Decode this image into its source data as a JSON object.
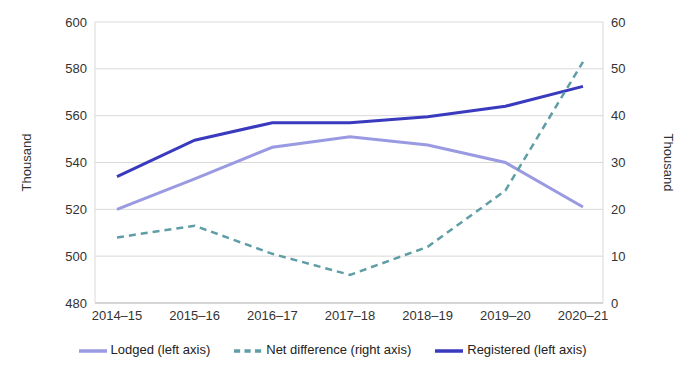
{
  "chart_data": {
    "type": "line",
    "categories": [
      "2014–15",
      "2015–16",
      "2016–17",
      "2017–18",
      "2018–19",
      "2019–20",
      "2020–21"
    ],
    "series": [
      {
        "name": "Registered (left axis)",
        "color": "#3a3abf",
        "values": [
          534,
          549.5,
          557,
          557,
          559.5,
          564,
          572.5
        ],
        "line_style": "solid"
      },
      {
        "name": "Lodged (left axis)",
        "color": "#9a9ae2",
        "values": [
          520,
          533,
          546.5,
          551,
          547.5,
          540,
          521
        ],
        "line_style": "solid"
      },
      {
        "name": "Net difference (right axis)",
        "color": "#5f9ea6",
        "values": [
          14,
          16.5,
          10.5,
          6,
          12,
          24,
          51.5
        ],
        "axis": "y2",
        "line_style": "dashed"
      }
    ],
    "ylim": [
      480,
      600
    ],
    "yticks": [
      480,
      500,
      520,
      540,
      560,
      580,
      600
    ],
    "y2lim": [
      0,
      60
    ],
    "y2ticks": [
      0,
      10,
      20,
      30,
      40,
      50,
      60
    ],
    "y_label": "Thousand",
    "y2_label": "Thousand",
    "grid": true,
    "legend": "bottom"
  }
}
